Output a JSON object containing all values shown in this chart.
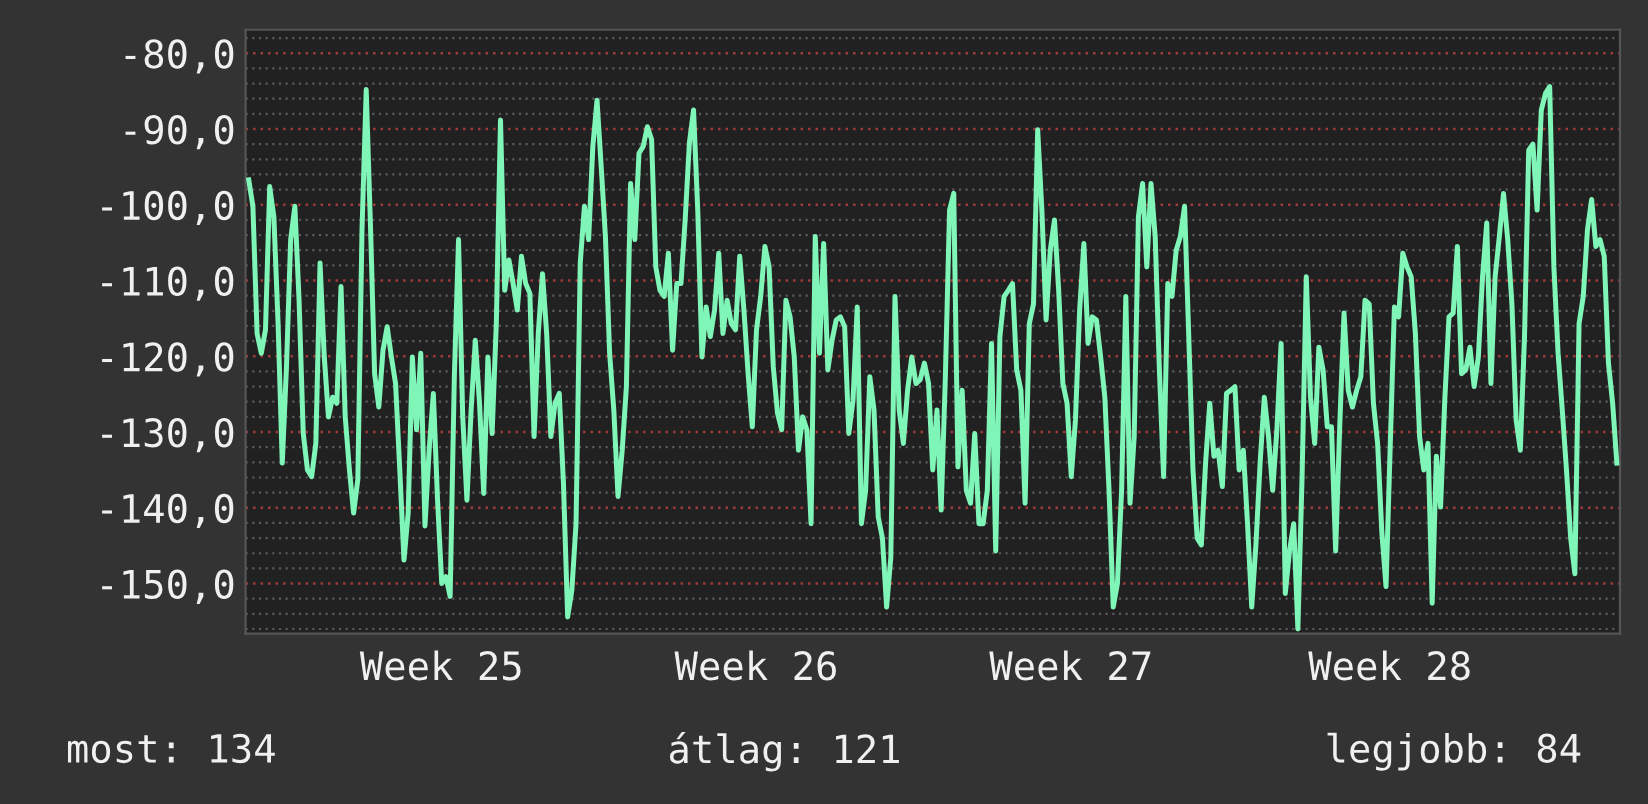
{
  "chart_data": {
    "type": "line",
    "grid": "y",
    "legend": false,
    "marker": "none",
    "line_style": "solid",
    "ylim": [
      -156.6,
      -76.9
    ],
    "categories": [
      null,
      null,
      null,
      null,
      null,
      null,
      null,
      null,
      null,
      null,
      null,
      null,
      null,
      null,
      null,
      null,
      null,
      null,
      null,
      null,
      null,
      null,
      null,
      null,
      null,
      null,
      null,
      null,
      null,
      null,
      null,
      null,
      null,
      null,
      null,
      null,
      null,
      null,
      null,
      null,
      null,
      null,
      null,
      null,
      null,
      null,
      "Week 25",
      null,
      null,
      null,
      null,
      null,
      null,
      null,
      null,
      null,
      null,
      null,
      null,
      null,
      null,
      null,
      null,
      null,
      null,
      null,
      null,
      null,
      null,
      null,
      null,
      null,
      null,
      null,
      null,
      null,
      null,
      null,
      null,
      null,
      null,
      null,
      null,
      null,
      null,
      null,
      null,
      null,
      null,
      null,
      null,
      null,
      null,
      null,
      null,
      null,
      null,
      null,
      null,
      null,
      null,
      null,
      null,
      null,
      null,
      null,
      null,
      null,
      null,
      null,
      null,
      null,
      null,
      null,
      null,
      null,
      null,
      null,
      null,
      null,
      null,
      "Week 26",
      null,
      null,
      null,
      null,
      null,
      null,
      null,
      null,
      null,
      null,
      null,
      null,
      null,
      null,
      null,
      null,
      null,
      null,
      null,
      null,
      null,
      null,
      null,
      null,
      null,
      null,
      null,
      null,
      null,
      null,
      null,
      null,
      null,
      null,
      null,
      null,
      null,
      null,
      null,
      null,
      null,
      null,
      null,
      null,
      null,
      null,
      null,
      null,
      null,
      null,
      null,
      null,
      null,
      null,
      null,
      null,
      null,
      null,
      null,
      null,
      null,
      null,
      null,
      null,
      null,
      null,
      null,
      null,
      null,
      null,
      null,
      null,
      null,
      null,
      "Week 27",
      null,
      null,
      null,
      null,
      null,
      null,
      null,
      null,
      null,
      null,
      null,
      null,
      null,
      null,
      null,
      null,
      null,
      null,
      null,
      null,
      null,
      null,
      null,
      null,
      null,
      null,
      null,
      null,
      null,
      null,
      null,
      null,
      null,
      null,
      null,
      null,
      null,
      null,
      null,
      null,
      null,
      null,
      null,
      null,
      null,
      null,
      null,
      null,
      null,
      null,
      null,
      null,
      null,
      null,
      null,
      null,
      null,
      null,
      null,
      null,
      null,
      null,
      null,
      null,
      null,
      null,
      null,
      null,
      null,
      null,
      null,
      null,
      null,
      null,
      null,
      "Week 28",
      null,
      null,
      null,
      null,
      null,
      null,
      null,
      null,
      null,
      null,
      null,
      null,
      null,
      null,
      null,
      null,
      null,
      null,
      null,
      null,
      null,
      null,
      null,
      null,
      null,
      null,
      null,
      null,
      null,
      null,
      null,
      null,
      null,
      null,
      null,
      null,
      null,
      null,
      null,
      null,
      null,
      null,
      null,
      null,
      null,
      null,
      null,
      null,
      null,
      null,
      null,
      null,
      null,
      null
    ],
    "yticks": [
      {
        "value": -80,
        "label": "-80,0"
      },
      {
        "value": -90,
        "label": "-90,0"
      },
      {
        "value": -100,
        "label": "-100,0"
      },
      {
        "value": -110,
        "label": "-110,0"
      },
      {
        "value": -120,
        "label": "-120,0"
      },
      {
        "value": -130,
        "label": "-130,0"
      },
      {
        "value": -140,
        "label": "-140,0"
      },
      {
        "value": -150,
        "label": "-150,0"
      }
    ],
    "annotations": [
      "most: 134",
      "átlag: 121",
      "legjobb: 84"
    ],
    "series": [
      {
        "color": "#7ff5b8",
        "values": [
          -96.7,
          -100.2,
          -117,
          -119.6,
          -116.5,
          -97.6,
          -101.6,
          -115.7,
          -134.1,
          -121.4,
          -104.6,
          -100.2,
          -112.6,
          -130.2,
          -135,
          -135.9,
          -131.5,
          -107.7,
          -120,
          -128,
          -125.4,
          -126.2,
          -110.8,
          -128,
          -135,
          -140.7,
          -136.3,
          -103.3,
          -84.8,
          -102.4,
          -122.3,
          -126.7,
          -119.2,
          -116.1,
          -120.1,
          -123.6,
          -135,
          -146.9,
          -140.7,
          -120.1,
          -129.7,
          -119.6,
          -142.4,
          -132.4,
          -124.9,
          -139,
          -150,
          -149.1,
          -151.7,
          -122.7,
          -104.6,
          -128,
          -139,
          -127.1,
          -117.9,
          -126.2,
          -138.1,
          -120.1,
          -130.2,
          -115.7,
          -88.8,
          -111.3,
          -107.3,
          -110.4,
          -113.9,
          -106.8,
          -110.4,
          -111.7,
          -130.6,
          -117,
          -109.1,
          -117,
          -130.6,
          -126.2,
          -124.9,
          -136.8,
          -154.4,
          -150.9,
          -142.1,
          -107.7,
          -100.2,
          -104.6,
          -92.3,
          -86.2,
          -95,
          -104.2,
          -119.6,
          -127.1,
          -138.5,
          -132.4,
          -124,
          -97.2,
          -104.6,
          -93.2,
          -92.3,
          -89.7,
          -91.4,
          -108.2,
          -111.3,
          -112.1,
          -106.4,
          -119.2,
          -110.4,
          -110.4,
          -102,
          -91.9,
          -87.5,
          -100.7,
          -120.1,
          -113.5,
          -117.4,
          -113.9,
          -106.4,
          -117,
          -112.6,
          -115.7,
          -116.5,
          -106.8,
          -113.9,
          -122.3,
          -129.3,
          -116.5,
          -112.1,
          -105.5,
          -108.2,
          -121.4,
          -127.5,
          -129.7,
          -112.6,
          -114.8,
          -120.1,
          -132.4,
          -128,
          -129.7,
          -142.1,
          -104.2,
          -119.6,
          -105.1,
          -121.8,
          -117.9,
          -115.2,
          -114.8,
          -116.1,
          -130.2,
          -125.8,
          -113.5,
          -142.1,
          -137.7,
          -122.7,
          -127.1,
          -141.2,
          -144,
          -153.1,
          -146.6,
          -112.1,
          -127.1,
          -131.5,
          -124.5,
          -120.1,
          -123.6,
          -123.1,
          -120.9,
          -123.6,
          -135,
          -127.1,
          -140.3,
          -122.7,
          -100.7,
          -98.5,
          -134.6,
          -124.5,
          -137.7,
          -139.4,
          -130.2,
          -142.1,
          -142.1,
          -137.7,
          -118.3,
          -145.7,
          -117.4,
          -112.1,
          -111.3,
          -110.4,
          -121.8,
          -124.5,
          -139.4,
          -115.7,
          -113.1,
          -90.1,
          -100.7,
          -115.2,
          -106,
          -102,
          -111.3,
          -123.6,
          -126.2,
          -135.9,
          -128.4,
          -113.9,
          -105.1,
          -118.3,
          -114.8,
          -115.2,
          -120.1,
          -125.4,
          -137.7,
          -153.1,
          -150,
          -137.7,
          -112.1,
          -139.4,
          -130.6,
          -101.6,
          -97.2,
          -108.2,
          -97.2,
          -104.2,
          -121.8,
          -135.9,
          -110.4,
          -112.1,
          -106,
          -104.2,
          -100.2,
          -117.4,
          -135,
          -144,
          -144.9,
          -134.1,
          -126.2,
          -133.2,
          -132.4,
          -137.2,
          -124.9,
          -124.5,
          -124,
          -135,
          -132.4,
          -142.1,
          -153.1,
          -144.9,
          -134.1,
          -125.4,
          -130.6,
          -137.7,
          -129.7,
          -118.3,
          -151.3,
          -145.7,
          -142.1,
          -156,
          -135.9,
          -109.5,
          -125.4,
          -131.5,
          -118.8,
          -121.8,
          -129.3,
          -129.3,
          -145.7,
          -128.8,
          -114.3,
          -124.5,
          -126.7,
          -124.5,
          -122.7,
          -112.6,
          -113.1,
          -126.2,
          -131.5,
          -143.2,
          -150.4,
          -131.9,
          -113.5,
          -114.8,
          -106.4,
          -108.2,
          -109.5,
          -117,
          -130.6,
          -135,
          -131.5,
          -152.6,
          -133.2,
          -139.9,
          -125.8,
          -114.8,
          -114.3,
          -105.5,
          -122.3,
          -121.8,
          -118.8,
          -124,
          -120.1,
          -109.5,
          -102.4,
          -123.6,
          -109.5,
          -104.2,
          -98.5,
          -104.6,
          -113.1,
          -128.4,
          -132.4,
          -117.4,
          -92.8,
          -92,
          -100.7,
          -87.5,
          -85.3,
          -84.4,
          -108.2,
          -119.6,
          -127.1,
          -135,
          -144,
          -148.7,
          -115.7,
          -112.1,
          -103.3,
          -99.3,
          -105.5,
          -104.6,
          -106.8,
          -120.9,
          -126.2,
          -134.1
        ]
      }
    ]
  }
}
